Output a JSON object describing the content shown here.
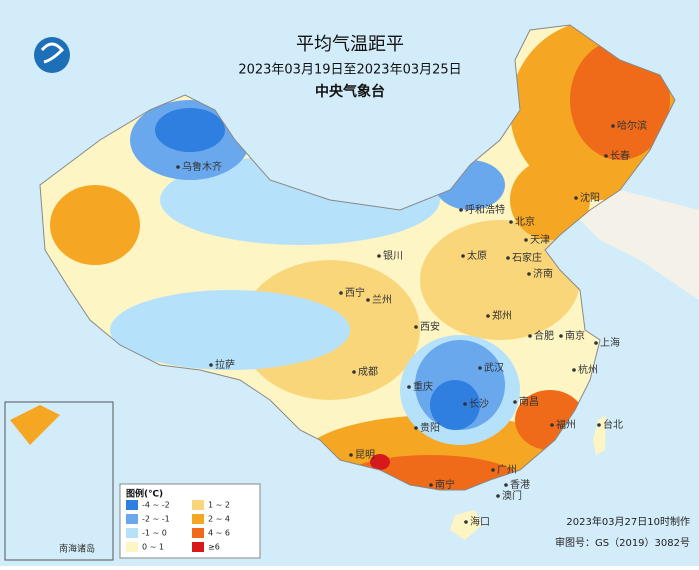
{
  "header": {
    "title": "平均气温距平",
    "subtitle": "2023年03月19日至2023年03月25日",
    "agency": "中央气象台"
  },
  "legend": {
    "title": "图例(℃)",
    "items": [
      {
        "label": "-4 ~ -2",
        "color": "#2f7fe0"
      },
      {
        "label": "1 ~ 2",
        "color": "#fad67a"
      },
      {
        "label": "-2 ~ -1",
        "color": "#6aa8ee"
      },
      {
        "label": "2 ~ 4",
        "color": "#f5a623"
      },
      {
        "label": "-1 ~ 0",
        "color": "#b6e1fb"
      },
      {
        "label": "4 ~ 6",
        "color": "#ef6b1a"
      },
      {
        "label": "0 ~ 1",
        "color": "#fdf5c4"
      },
      {
        "label": "≥6",
        "color": "#d7191c"
      }
    ]
  },
  "cities": [
    "乌鲁木齐",
    "哈尔滨",
    "长春",
    "沈阳",
    "呼和浩特",
    "北京",
    "天津",
    "银川",
    "太原",
    "石家庄",
    "济南",
    "西宁",
    "兰州",
    "郑州",
    "西安",
    "合肥",
    "南京",
    "上海",
    "拉萨",
    "成都",
    "武汉",
    "杭州",
    "重庆",
    "长沙",
    "南昌",
    "福州",
    "台北",
    "贵阳",
    "昆明",
    "南宁",
    "广州",
    "香港",
    "澳门",
    "海口"
  ],
  "inset": {
    "label": "南海诸岛"
  },
  "footer": {
    "made": "2023年03月27日10时制作",
    "approval": "审图号：GS（2019）3082号"
  }
}
